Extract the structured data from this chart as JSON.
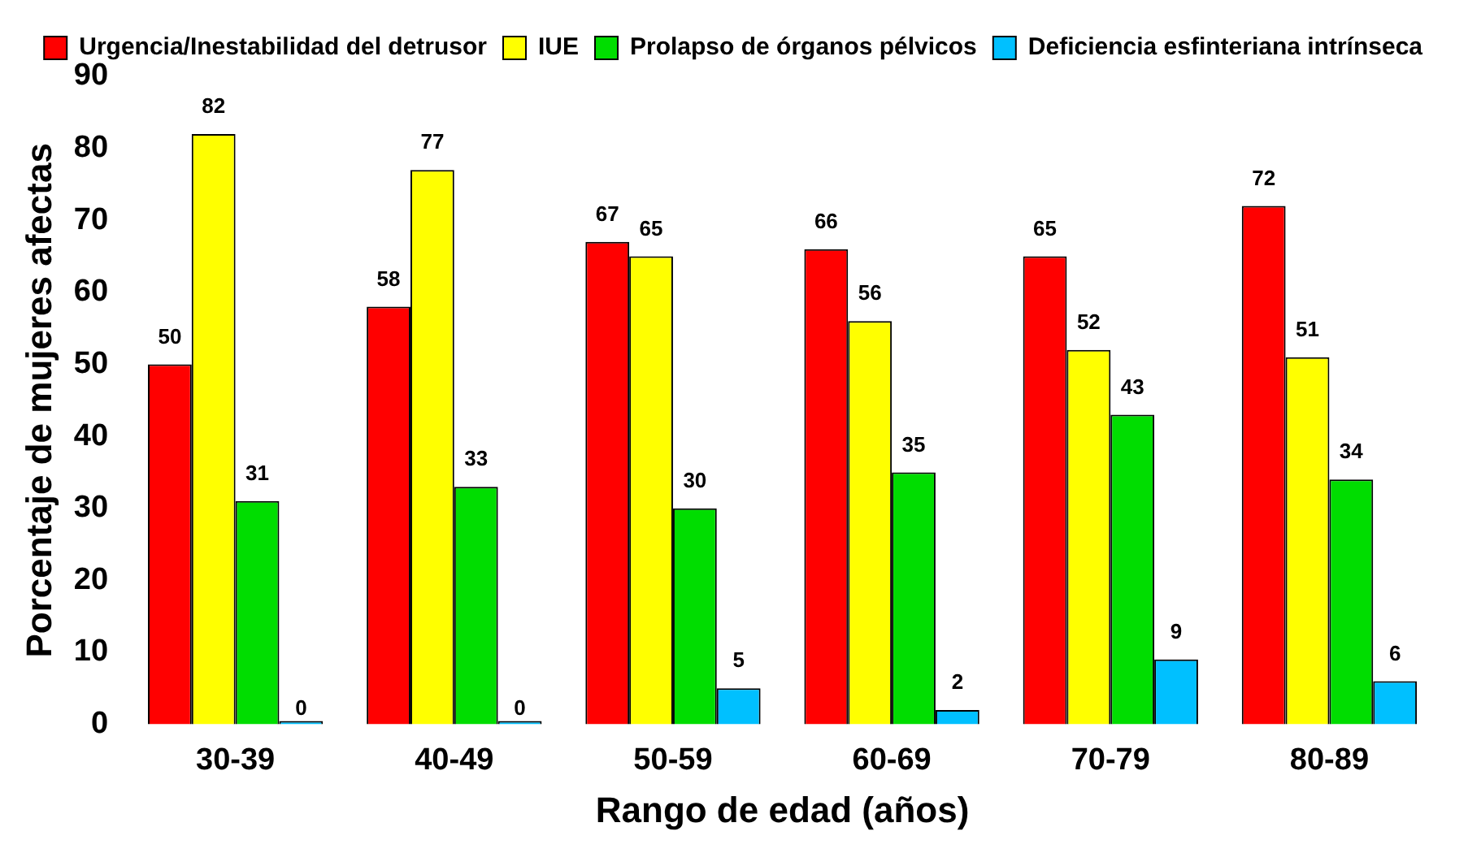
{
  "chart_data": {
    "type": "bar",
    "xlabel": "Rango de edad (años)",
    "ylabel": "Porcentaje de mujeres afectas",
    "categories": [
      "30-39",
      "40-49",
      "50-59",
      "60-69",
      "70-79",
      "80-89"
    ],
    "series": [
      {
        "name": "Urgencia/Inestabilidad del detrusor",
        "color": "#ff0000",
        "values": [
          50,
          58,
          67,
          66,
          65,
          72
        ]
      },
      {
        "name": "IUE",
        "color": "#ffff00",
        "values": [
          82,
          77,
          65,
          56,
          52,
          51
        ]
      },
      {
        "name": "Prolapso de órganos pélvicos",
        "color": "#00dd00",
        "values": [
          31,
          33,
          30,
          35,
          43,
          34
        ]
      },
      {
        "name": "Deficiencia esfinteriana intrínseca",
        "color": "#00c0ff",
        "values": [
          0,
          0,
          5,
          2,
          9,
          6
        ]
      }
    ],
    "ylim": [
      0,
      90
    ],
    "yticks": [
      0,
      10,
      20,
      30,
      40,
      50,
      60,
      70,
      80,
      90
    ],
    "grid": false,
    "legend": "top right",
    "data_labels": true
  }
}
